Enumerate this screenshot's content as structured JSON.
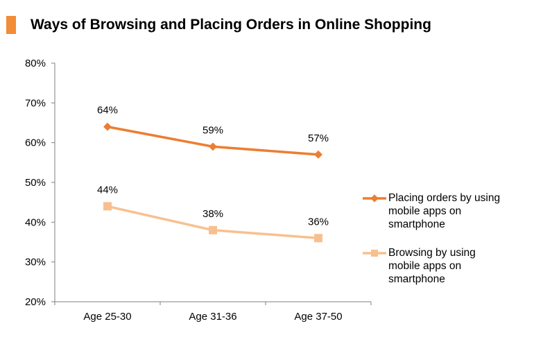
{
  "title": "Ways of Browsing and Placing Orders in Online Shopping",
  "colors": {
    "accent": "#F28C38",
    "series1": "#ED7D31",
    "series2": "#F8C08E",
    "axis": "#7F7F7F"
  },
  "chart_data": {
    "type": "line",
    "title": "Ways of Browsing and Placing Orders in Online Shopping",
    "xlabel": "",
    "ylabel": "",
    "categories": [
      "Age 25-30",
      "Age 31-36",
      "Age 37-50"
    ],
    "ylim": [
      20,
      80
    ],
    "yticks": [
      "20%",
      "30%",
      "40%",
      "50%",
      "60%",
      "70%",
      "80%"
    ],
    "grid": false,
    "legend_position": "right",
    "series": [
      {
        "name": "Placing orders by using mobile apps on smartphone",
        "values": [
          64,
          59,
          57
        ],
        "labels": [
          "64%",
          "59%",
          "57%"
        ],
        "marker": "diamond",
        "color": "#ED7D31"
      },
      {
        "name": "Browsing by using mobile apps on smartphone",
        "values": [
          44,
          38,
          36
        ],
        "labels": [
          "44%",
          "38%",
          "36%"
        ],
        "marker": "square",
        "color": "#F8C08E"
      }
    ]
  },
  "legend": {
    "items": [
      {
        "lines": [
          "Placing orders by using",
          "mobile apps on",
          "smartphone"
        ],
        "marker": "diamond",
        "color": "#ED7D31"
      },
      {
        "lines": [
          "Browsing by using",
          "mobile apps on",
          "smartphone"
        ],
        "marker": "square",
        "color": "#F8C08E"
      }
    ]
  }
}
